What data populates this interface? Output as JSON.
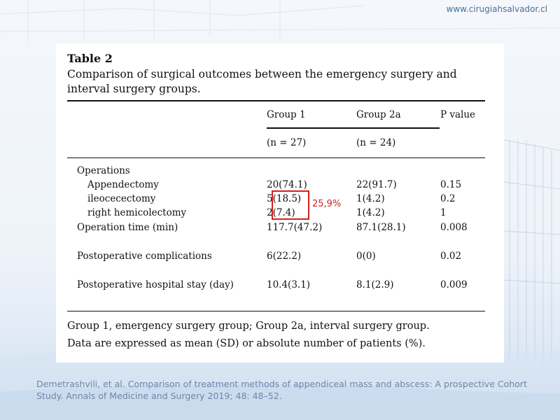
{
  "website": "www.cirugiahsalvador.cl",
  "table": {
    "title": "Table 2",
    "caption": "Comparison of surgical outcomes between the emergency surgery and interval surgery groups.",
    "headers": {
      "col1": "Group 1",
      "col2": "Group 2a",
      "col3": "P value",
      "n1": "(n = 27)",
      "n2": "(n = 24)"
    },
    "rows": [
      {
        "label": "Operations",
        "g1": "",
        "g2": "",
        "p": ""
      },
      {
        "label": "Appendectomy",
        "g1": "20(74.1)",
        "g2": "22(91.7)",
        "p": "0.15"
      },
      {
        "label": "ileocecectomy",
        "g1": "5(18.5)",
        "g2": "1(4.2)",
        "p": "0.2"
      },
      {
        "label": "right hemicolectomy",
        "g1": "2(7.4)",
        "g2": "1(4.2)",
        "p": "1"
      },
      {
        "label": "Operation time (min)",
        "g1": "117.7(47.2)",
        "g2": "87.1(28.1)",
        "p": "0.008"
      },
      {
        "label": "Postoperative complications",
        "g1": "6(22.2)",
        "g2": "0(0)",
        "p": "0.02"
      },
      {
        "label": "Postoperative hospital stay (day)",
        "g1": "10.4(3.1)",
        "g2": "8.1(2.9)",
        "p": "0.009"
      }
    ],
    "footnote_line1": "Group 1, emergency surgery group; Group 2a, interval surgery group.",
    "footnote_line2": "Data are expressed as mean (SD) or absolute number of patients (%)."
  },
  "annotation": "25,9%",
  "reference": "Demetrashvili, et al. Comparison of treatment methods of appendiceal mass and abscess: A prospective Cohort Study. Annals of Medicine and Surgery 2019; 48: 48–52.",
  "colors": {
    "annotation": "#d42020",
    "reference_text": "#6f86a8",
    "website_text": "#4a6f98"
  }
}
